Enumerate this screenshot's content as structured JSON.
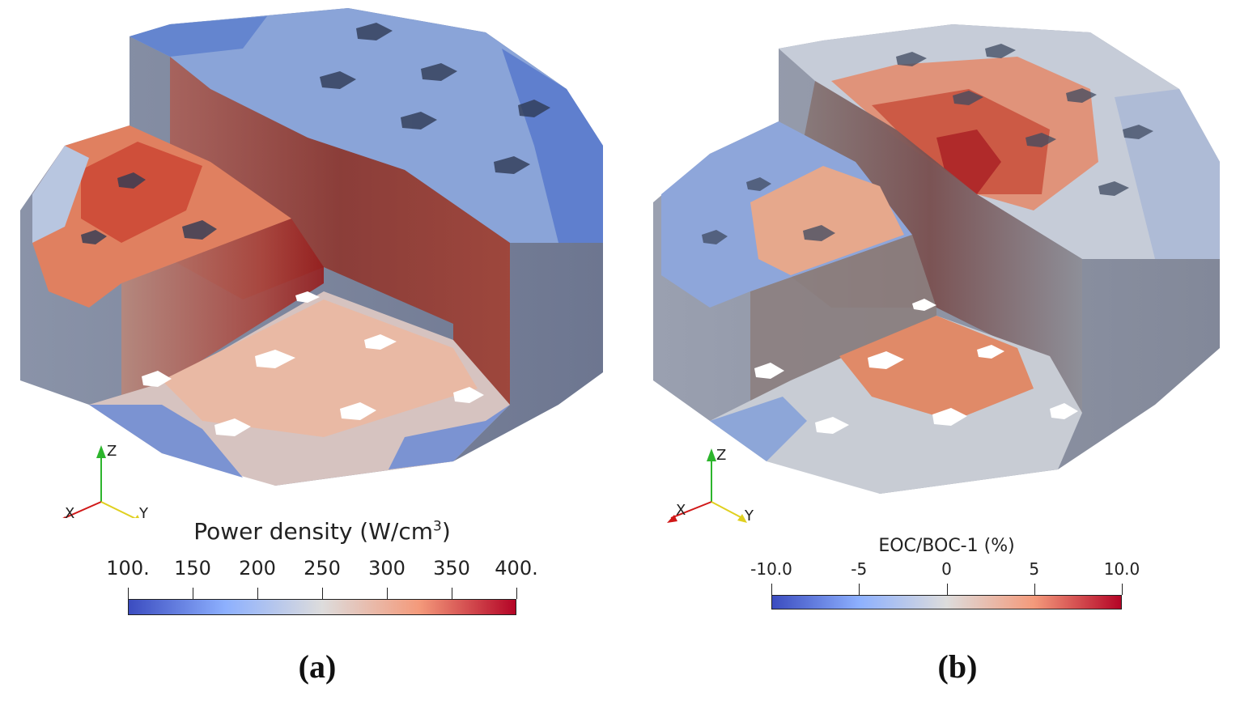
{
  "panels": [
    {
      "label": "(a)",
      "colorbar": {
        "title": "Power density (W/cm",
        "title_sup": "3",
        "title_end": ")",
        "ticks": [
          "100.",
          "150",
          "200",
          "250",
          "300",
          "350",
          "400."
        ],
        "min": 100,
        "max": 400,
        "colormap": [
          "#3b4cc0",
          "#8db0fe",
          "#dddcdc",
          "#f49a7b",
          "#b40426"
        ]
      },
      "axes": {
        "z": "Z",
        "x": "X",
        "y": "Y"
      }
    },
    {
      "label": "(b)",
      "colorbar": {
        "title": "EOC/BOC-1 (%)",
        "ticks": [
          "-10.0",
          "-5",
          "0",
          "5",
          "10.0"
        ],
        "min": -10,
        "max": 10,
        "colormap": [
          "#3b4cc0",
          "#8db0fe",
          "#dddcdc",
          "#f49a7b",
          "#b40426"
        ]
      },
      "axes": {
        "z": "Z",
        "x": "X",
        "y": "Y"
      }
    }
  ],
  "colors": {
    "blue_dark": "#4a6cc8",
    "blue_light": "#9ab4e0",
    "neutral": "#c8c8cc",
    "red_light": "#e8a080",
    "red_mid": "#d86a4a",
    "red_dark": "#b02a2a",
    "wall_grey": "#8a8f9a"
  }
}
